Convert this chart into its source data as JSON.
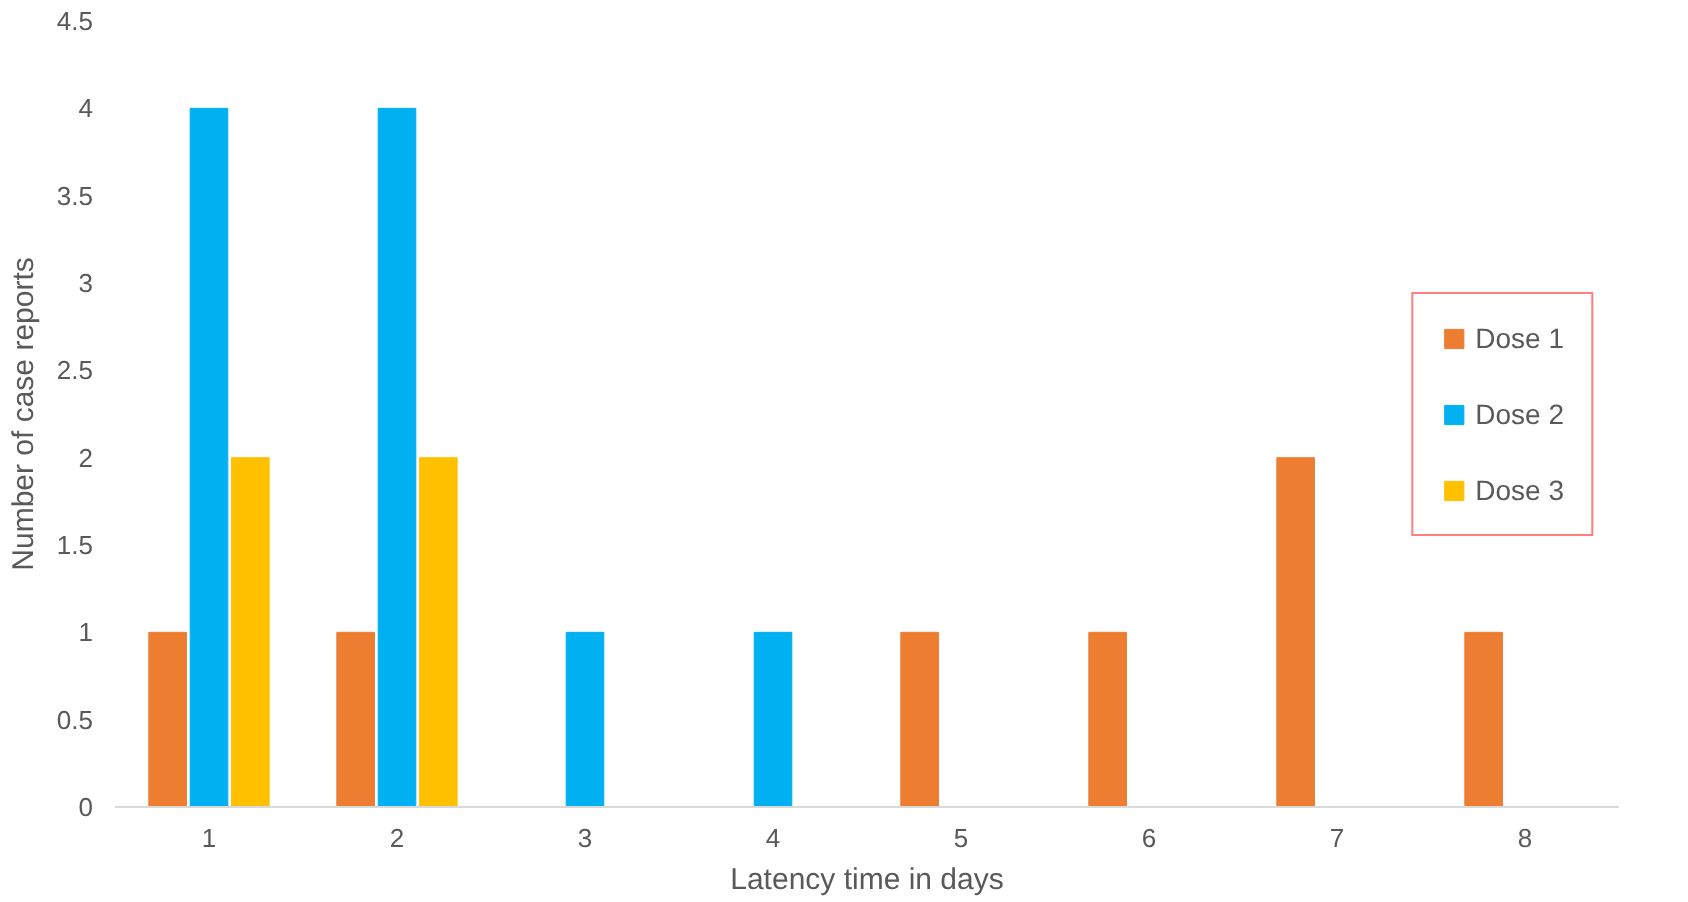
{
  "chart_data": {
    "type": "bar",
    "xlabel": "Latency time in days",
    "ylabel": "Number of case reports",
    "categories": [
      "1",
      "2",
      "3",
      "4",
      "5",
      "6",
      "7",
      "8"
    ],
    "series": [
      {
        "name": "Dose 1",
        "color": "#ed7d31",
        "values": [
          1,
          1,
          0,
          0,
          1,
          1,
          2,
          1
        ]
      },
      {
        "name": "Dose 2",
        "color": "#00b0f0",
        "values": [
          4,
          4,
          1,
          1,
          0,
          0,
          0,
          0
        ]
      },
      {
        "name": "Dose 3",
        "color": "#ffc000",
        "values": [
          2,
          2,
          0,
          0,
          0,
          0,
          0,
          0
        ]
      }
    ],
    "ylim": [
      0,
      4.5
    ],
    "yticks": [
      0,
      0.5,
      1,
      1.5,
      2,
      2.5,
      3,
      3.5,
      4,
      4.5
    ],
    "grid": false,
    "legend": "right"
  }
}
